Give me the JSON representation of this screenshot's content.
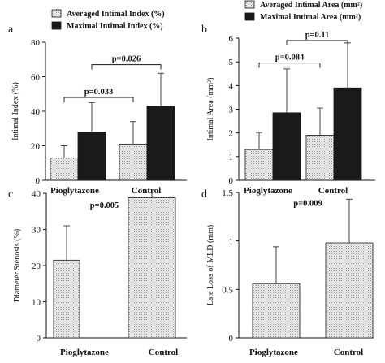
{
  "colors": {
    "axis": "#111111",
    "dark_bar": "#1a1a1a",
    "light_bar_fill": "#efefef",
    "light_bar_dots": "#8a8a8a"
  },
  "chart_data": [
    {
      "panel_letter": "a",
      "type": "bar",
      "categories": [
        "Pioglytazone",
        "Control"
      ],
      "series": [
        {
          "name": "Averaged Intimal Index (%)",
          "style": "dotted",
          "values": [
            13,
            21
          ],
          "error": [
            7,
            13
          ]
        },
        {
          "name": "Maximal Intimal Index (%)",
          "style": "dark",
          "values": [
            28,
            43
          ],
          "error": [
            17,
            19
          ]
        }
      ],
      "ylabel": "Intimal Index (%)",
      "ylim": [
        0,
        80
      ],
      "yticks": [
        "0",
        "20",
        "40",
        "60",
        "80"
      ],
      "legend_position": "top",
      "annotations": [
        {
          "label": "p=0.033",
          "from_category": 0,
          "to_category": 1,
          "series": 0,
          "level": 48
        },
        {
          "label": "p=0.026",
          "from_category": 0,
          "to_category": 1,
          "series": 1,
          "level": 67
        }
      ]
    },
    {
      "panel_letter": "b",
      "type": "bar",
      "categories": [
        "Pioglytazone",
        "Control"
      ],
      "series": [
        {
          "name": "Averaged Intimal Area (mm²)",
          "style": "dotted",
          "values": [
            1.3,
            1.9
          ],
          "error": [
            0.72,
            1.15
          ]
        },
        {
          "name": "Maximal Intimal Area (mm²)",
          "style": "dark",
          "values": [
            2.85,
            3.9
          ],
          "error": [
            1.85,
            1.9
          ]
        }
      ],
      "ylabel": "Intimal Area (mm²)",
      "ylim": [
        0,
        6
      ],
      "yticks": [
        "0",
        "1",
        "2",
        "3",
        "4",
        "5",
        "6"
      ],
      "legend_position": "top",
      "annotations": [
        {
          "label": "p=0.084",
          "from_category": 0,
          "to_category": 1,
          "series": 0,
          "level": 4.95
        },
        {
          "label": "p=0.11",
          "from_category": 0,
          "to_category": 1,
          "series": 1,
          "level": 5.9
        }
      ]
    },
    {
      "panel_letter": "c",
      "type": "bar",
      "categories": [
        "Pioglytazone",
        "Control"
      ],
      "series": [
        {
          "style": "dotted",
          "values": [
            21.5,
            38.8
          ],
          "error": [
            9.5,
            1.5
          ]
        }
      ],
      "ylabel": "Diameter Stenosis (%)",
      "ylim": [
        0,
        40
      ],
      "yticks": [
        "0",
        "10",
        "20",
        "30",
        "40"
      ],
      "annotations": [
        {
          "label": "p=0.005",
          "level": 36
        }
      ]
    },
    {
      "panel_letter": "d",
      "type": "bar",
      "categories": [
        "Pioglytazone",
        "Control"
      ],
      "series": [
        {
          "style": "dotted",
          "values": [
            0.56,
            0.98
          ],
          "error": [
            0.38,
            0.45
          ]
        }
      ],
      "ylabel": "Late Loss of MLD (mm)",
      "ylim": [
        0,
        1.5
      ],
      "yticks": [
        "0",
        "0.5",
        "1",
        "1.5"
      ],
      "annotations": [
        {
          "label": "p=0.009",
          "level": 1.36
        }
      ]
    }
  ]
}
